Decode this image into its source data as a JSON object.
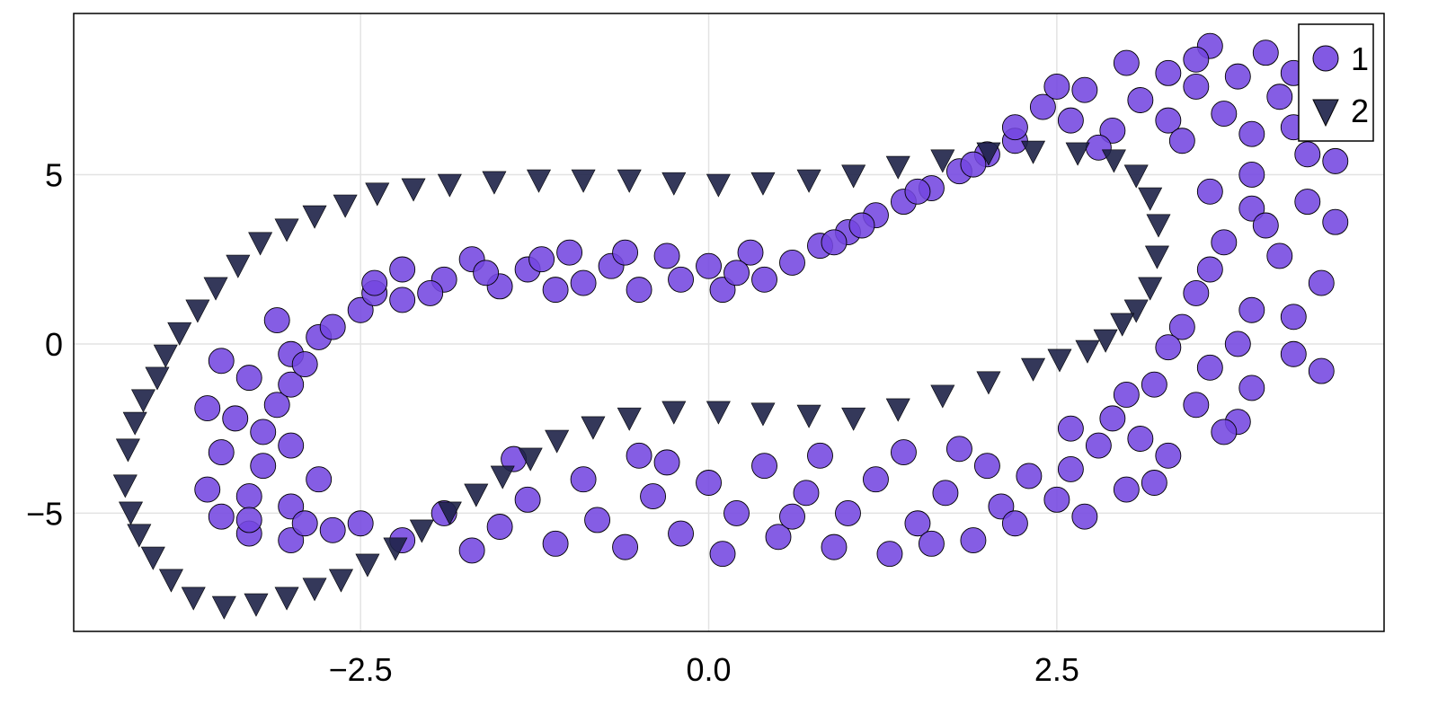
{
  "chart_data": {
    "type": "scatter",
    "title": "",
    "xlabel": "",
    "ylabel": "",
    "xlim": [
      -4.56,
      4.85
    ],
    "ylim": [
      -8.49,
      9.76
    ],
    "xticks": [
      -2.5,
      0.0,
      2.5
    ],
    "xtick_labels": [
      "−2.5",
      "0.0",
      "2.5"
    ],
    "yticks": [
      -5,
      0,
      5
    ],
    "ytick_labels": [
      "−5",
      "0",
      "5"
    ],
    "grid": true,
    "legend_position": "top-right",
    "series": [
      {
        "name": "1",
        "marker": "circle",
        "color": "#7447e0",
        "points": [
          [
            -3.5,
            -5.1
          ],
          [
            -3.3,
            -5.6
          ],
          [
            -3.0,
            -5.8
          ],
          [
            -2.7,
            -5.5
          ],
          [
            -3.6,
            -4.3
          ],
          [
            -3.3,
            -4.5
          ],
          [
            -3.0,
            -4.8
          ],
          [
            -3.5,
            -3.2
          ],
          [
            -3.2,
            -3.6
          ],
          [
            -3.0,
            -3.0
          ],
          [
            -3.4,
            -2.2
          ],
          [
            -3.1,
            -1.8
          ],
          [
            -3.6,
            -1.9
          ],
          [
            -3.3,
            -1.0
          ],
          [
            -3.5,
            -0.5
          ],
          [
            -3.0,
            -1.2
          ],
          [
            -3.0,
            -0.3
          ],
          [
            -2.8,
            0.2
          ],
          [
            -3.1,
            0.7
          ],
          [
            -2.7,
            0.5
          ],
          [
            -2.5,
            1.0
          ],
          [
            -2.4,
            1.5
          ],
          [
            -2.2,
            1.3
          ],
          [
            -2.9,
            -0.6
          ],
          [
            -2.8,
            -4.0
          ],
          [
            -2.5,
            -5.3
          ],
          [
            -3.2,
            -2.6
          ],
          [
            -3.3,
            -5.2
          ],
          [
            -2.9,
            -5.3
          ],
          [
            -2.2,
            2.2
          ],
          [
            -1.9,
            1.9
          ],
          [
            -1.7,
            2.5
          ],
          [
            -1.5,
            1.7
          ],
          [
            -1.3,
            2.2
          ],
          [
            -1.0,
            2.7
          ],
          [
            -0.9,
            1.8
          ],
          [
            -0.7,
            2.3
          ],
          [
            -0.5,
            1.6
          ],
          [
            -0.3,
            2.6
          ],
          [
            -0.2,
            1.9
          ],
          [
            0.0,
            2.3
          ],
          [
            0.1,
            1.6
          ],
          [
            0.3,
            2.7
          ],
          [
            0.4,
            1.9
          ],
          [
            0.6,
            2.4
          ],
          [
            0.8,
            2.9
          ],
          [
            -2.0,
            1.5
          ],
          [
            -1.6,
            2.1
          ],
          [
            -1.1,
            1.6
          ],
          [
            -0.6,
            2.7
          ],
          [
            0.2,
            2.1
          ],
          [
            -2.4,
            1.8
          ],
          [
            -1.2,
            2.5
          ],
          [
            1.0,
            3.3
          ],
          [
            1.2,
            3.8
          ],
          [
            1.4,
            4.2
          ],
          [
            1.6,
            4.6
          ],
          [
            1.8,
            5.1
          ],
          [
            2.0,
            5.6
          ],
          [
            2.2,
            6.0
          ],
          [
            1.1,
            3.5
          ],
          [
            1.5,
            4.5
          ],
          [
            1.9,
            5.3
          ],
          [
            0.9,
            3.0
          ],
          [
            2.2,
            6.4
          ],
          [
            2.4,
            7.0
          ],
          [
            2.6,
            6.6
          ],
          [
            2.7,
            7.5
          ],
          [
            2.9,
            6.3
          ],
          [
            3.0,
            8.3
          ],
          [
            3.1,
            7.2
          ],
          [
            3.3,
            6.6
          ],
          [
            3.3,
            8.0
          ],
          [
            3.5,
            7.6
          ],
          [
            3.6,
            8.8
          ],
          [
            3.7,
            6.8
          ],
          [
            3.8,
            7.9
          ],
          [
            3.9,
            6.2
          ],
          [
            4.0,
            8.6
          ],
          [
            4.1,
            7.3
          ],
          [
            4.2,
            6.4
          ],
          [
            4.3,
            5.6
          ],
          [
            4.4,
            6.8
          ],
          [
            4.5,
            5.4
          ],
          [
            3.4,
            6.0
          ],
          [
            2.8,
            5.8
          ],
          [
            3.9,
            5.0
          ],
          [
            4.2,
            8.0
          ],
          [
            3.5,
            8.4
          ],
          [
            2.5,
            7.6
          ],
          [
            3.6,
            4.5
          ],
          [
            3.9,
            4.0
          ],
          [
            4.3,
            4.2
          ],
          [
            4.5,
            3.6
          ],
          [
            3.7,
            3.0
          ],
          [
            4.1,
            2.6
          ],
          [
            4.4,
            1.8
          ],
          [
            3.5,
            1.5
          ],
          [
            3.9,
            1.0
          ],
          [
            4.2,
            0.8
          ],
          [
            3.4,
            0.5
          ],
          [
            3.8,
            0.0
          ],
          [
            4.2,
            -0.3
          ],
          [
            4.4,
            -0.8
          ],
          [
            3.6,
            -0.7
          ],
          [
            3.9,
            -1.3
          ],
          [
            3.5,
            -1.8
          ],
          [
            3.8,
            -2.3
          ],
          [
            3.7,
            -2.6
          ],
          [
            3.3,
            -0.1
          ],
          [
            4.0,
            3.5
          ],
          [
            3.6,
            2.2
          ],
          [
            3.2,
            -1.2
          ],
          [
            3.0,
            -1.5
          ],
          [
            2.9,
            -2.2
          ],
          [
            3.1,
            -2.8
          ],
          [
            3.3,
            -3.3
          ],
          [
            3.2,
            -4.1
          ],
          [
            2.8,
            -3.0
          ],
          [
            2.6,
            -2.5
          ],
          [
            2.6,
            -3.7
          ],
          [
            2.5,
            -4.6
          ],
          [
            2.7,
            -5.1
          ],
          [
            3.0,
            -4.3
          ],
          [
            -2.2,
            -5.8
          ],
          [
            -1.9,
            -5.0
          ],
          [
            -1.7,
            -6.1
          ],
          [
            -1.5,
            -5.4
          ],
          [
            -1.3,
            -4.6
          ],
          [
            -1.1,
            -5.9
          ],
          [
            -0.9,
            -4.0
          ],
          [
            -0.8,
            -5.2
          ],
          [
            -0.6,
            -6.0
          ],
          [
            -0.4,
            -4.5
          ],
          [
            -0.3,
            -3.5
          ],
          [
            -0.2,
            -5.6
          ],
          [
            0.0,
            -4.1
          ],
          [
            0.1,
            -6.2
          ],
          [
            0.2,
            -5.0
          ],
          [
            0.4,
            -3.6
          ],
          [
            0.5,
            -5.7
          ],
          [
            0.7,
            -4.4
          ],
          [
            0.8,
            -3.3
          ],
          [
            0.9,
            -6.0
          ],
          [
            1.0,
            -5.0
          ],
          [
            1.2,
            -4.0
          ],
          [
            1.3,
            -6.2
          ],
          [
            1.4,
            -3.2
          ],
          [
            1.5,
            -5.3
          ],
          [
            1.7,
            -4.4
          ],
          [
            1.9,
            -5.8
          ],
          [
            2.0,
            -3.6
          ],
          [
            2.1,
            -4.8
          ],
          [
            2.3,
            -3.9
          ],
          [
            1.8,
            -3.1
          ],
          [
            -1.4,
            -3.4
          ],
          [
            0.6,
            -5.1
          ],
          [
            -0.5,
            -3.3
          ],
          [
            1.6,
            -5.9
          ],
          [
            2.2,
            -5.3
          ]
        ]
      },
      {
        "name": "2",
        "marker": "triangle-down",
        "color": "#1e2248",
        "points": [
          [
            -4.19,
            -4.16
          ],
          [
            -4.17,
            -3.1
          ],
          [
            -4.12,
            -2.31
          ],
          [
            -4.06,
            -1.64
          ],
          [
            -3.96,
            -0.98
          ],
          [
            -3.9,
            -0.32
          ],
          [
            -3.8,
            0.34
          ],
          [
            -3.67,
            1.01
          ],
          [
            -3.54,
            1.67
          ],
          [
            -3.38,
            2.33
          ],
          [
            -3.22,
            3.0
          ],
          [
            -3.03,
            3.4
          ],
          [
            -2.83,
            3.79
          ],
          [
            -2.61,
            4.11
          ],
          [
            -2.38,
            4.46
          ],
          [
            -2.12,
            4.59
          ],
          [
            -1.86,
            4.72
          ],
          [
            -1.54,
            4.8
          ],
          [
            -1.22,
            4.85
          ],
          [
            -0.9,
            4.85
          ],
          [
            -0.57,
            4.85
          ],
          [
            -0.25,
            4.77
          ],
          [
            0.07,
            4.72
          ],
          [
            0.39,
            4.77
          ],
          [
            0.72,
            4.85
          ],
          [
            1.04,
            4.99
          ],
          [
            1.36,
            5.25
          ],
          [
            1.68,
            5.44
          ],
          [
            2.01,
            5.65
          ],
          [
            2.33,
            5.7
          ],
          [
            2.65,
            5.65
          ],
          [
            2.91,
            5.44
          ],
          [
            3.07,
            4.99
          ],
          [
            3.17,
            4.32
          ],
          [
            3.23,
            3.53
          ],
          [
            3.22,
            2.6
          ],
          [
            3.17,
            1.67
          ],
          [
            3.07,
            1.01
          ],
          [
            2.97,
            0.61
          ],
          [
            2.85,
            0.13
          ],
          [
            2.72,
            -0.19
          ],
          [
            2.52,
            -0.45
          ],
          [
            2.33,
            -0.72
          ],
          [
            2.01,
            -1.11
          ],
          [
            1.68,
            -1.51
          ],
          [
            1.36,
            -1.91
          ],
          [
            1.04,
            -2.18
          ],
          [
            0.72,
            -2.1
          ],
          [
            0.39,
            -2.04
          ],
          [
            0.07,
            -1.99
          ],
          [
            -0.25,
            -1.99
          ],
          [
            -0.57,
            -2.18
          ],
          [
            -0.83,
            -2.44
          ],
          [
            -1.09,
            -2.84
          ],
          [
            -1.28,
            -3.37
          ],
          [
            -1.48,
            -3.9
          ],
          [
            -1.67,
            -4.43
          ],
          [
            -1.86,
            -4.96
          ],
          [
            -2.06,
            -5.49
          ],
          [
            -2.25,
            -6.02
          ],
          [
            -2.45,
            -6.5
          ],
          [
            -2.64,
            -6.95
          ],
          [
            -2.83,
            -7.21
          ],
          [
            -3.03,
            -7.48
          ],
          [
            -3.25,
            -7.67
          ],
          [
            -3.48,
            -7.75
          ],
          [
            -3.7,
            -7.48
          ],
          [
            -3.86,
            -6.95
          ],
          [
            -3.99,
            -6.29
          ],
          [
            -4.09,
            -5.62
          ],
          [
            -4.15,
            -4.96
          ]
        ]
      }
    ]
  }
}
